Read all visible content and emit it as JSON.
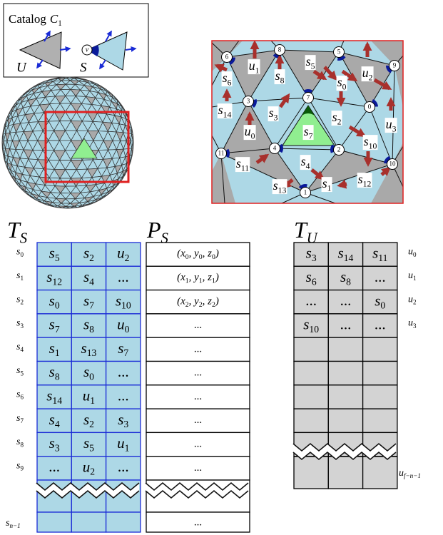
{
  "catalog": {
    "label": "Catalog",
    "symbol": [
      "C",
      [
        "1"
      ]
    ],
    "tile_u": "U",
    "tile_s": "S",
    "vertex": "v"
  },
  "mesh": {
    "nodes": [
      "0",
      "1",
      "2",
      "3",
      "4",
      "5",
      "6",
      "7",
      "8",
      "9",
      "10",
      "11"
    ],
    "labels": [
      [
        "s",
        [
          "6"
        ]
      ],
      [
        "u",
        [
          "1"
        ]
      ],
      [
        "s",
        [
          "5"
        ]
      ],
      [
        "u",
        [
          "2"
        ]
      ],
      [
        "s",
        [
          "8"
        ]
      ],
      [
        "s",
        [
          "0"
        ]
      ],
      [
        "s",
        [
          "14"
        ]
      ],
      [
        "s",
        [
          "3"
        ]
      ],
      [
        "s",
        [
          "2"
        ]
      ],
      [
        "u",
        [
          "3"
        ]
      ],
      [
        "u",
        [
          "0"
        ]
      ],
      [
        "s",
        [
          "7"
        ]
      ],
      [
        "s",
        [
          "10"
        ]
      ],
      [
        "s",
        [
          "11"
        ]
      ],
      [
        "s",
        [
          "4"
        ]
      ],
      [
        "s",
        [
          "13"
        ]
      ],
      [
        "s",
        [
          "1"
        ]
      ],
      [
        "s",
        [
          "12"
        ]
      ]
    ]
  },
  "tables": {
    "ts": {
      "title": [
        "T",
        [
          "S"
        ]
      ],
      "row_labels": [
        [
          "s",
          [
            "0"
          ]
        ],
        [
          "s",
          [
            "1"
          ]
        ],
        [
          "s",
          [
            "2"
          ]
        ],
        [
          "s",
          [
            "3"
          ]
        ],
        [
          "s",
          [
            "4"
          ]
        ],
        [
          "s",
          [
            "5"
          ]
        ],
        [
          "s",
          [
            "6"
          ]
        ],
        [
          "s",
          [
            "7"
          ]
        ],
        [
          "s",
          [
            "8"
          ]
        ],
        [
          "s",
          [
            "9"
          ]
        ]
      ],
      "rows": [
        [
          [
            "s",
            [
              "5"
            ]
          ],
          [
            "s",
            [
              "2"
            ]
          ],
          [
            "u",
            [
              "2"
            ]
          ]
        ],
        [
          [
            "s",
            [
              "12"
            ]
          ],
          [
            "s",
            [
              "4"
            ]
          ],
          "..."
        ],
        [
          [
            "s",
            [
              "0"
            ]
          ],
          [
            "s",
            [
              "7"
            ]
          ],
          [
            "s",
            [
              "10"
            ]
          ]
        ],
        [
          [
            "s",
            [
              "7"
            ]
          ],
          [
            "s",
            [
              "8"
            ]
          ],
          [
            "u",
            [
              "0"
            ]
          ]
        ],
        [
          [
            "s",
            [
              "1"
            ]
          ],
          [
            "s",
            [
              "13"
            ]
          ],
          [
            "s",
            [
              "7"
            ]
          ]
        ],
        [
          [
            "s",
            [
              "8"
            ]
          ],
          [
            "s",
            [
              "0"
            ]
          ],
          "..."
        ],
        [
          [
            "s",
            [
              "14"
            ]
          ],
          [
            "u",
            [
              "1"
            ]
          ],
          "..."
        ],
        [
          [
            "s",
            [
              "4"
            ]
          ],
          [
            "s",
            [
              "2"
            ]
          ],
          [
            "s",
            [
              "3"
            ]
          ]
        ],
        [
          [
            "s",
            [
              "3"
            ]
          ],
          [
            "s",
            [
              "5"
            ]
          ],
          [
            "u",
            [
              "1"
            ]
          ]
        ],
        [
          "...",
          [
            "u",
            [
              "2"
            ]
          ],
          "..."
        ]
      ],
      "last_label": [
        "s",
        [
          "n−1"
        ]
      ]
    },
    "ps": {
      "title": [
        "P",
        [
          "S"
        ]
      ],
      "rows": [
        [
          "(x",
          [
            "0"
          ],
          ", y",
          [
            "0"
          ],
          ", z",
          [
            "0"
          ],
          ")"
        ],
        [
          "(x",
          [
            "1"
          ],
          ", y",
          [
            "1"
          ],
          ", z",
          [
            "1"
          ],
          ")"
        ],
        [
          "(x",
          [
            "2"
          ],
          ", y",
          [
            "2"
          ],
          ", z",
          [
            "2"
          ],
          ")"
        ],
        "...",
        "...",
        "...",
        "...",
        "...",
        "...",
        "..."
      ],
      "last_row": "..."
    },
    "tu": {
      "title": [
        "T",
        [
          "U"
        ]
      ],
      "row_labels": [
        [
          "u",
          [
            "0"
          ]
        ],
        [
          "u",
          [
            "1"
          ]
        ],
        [
          "u",
          [
            "2"
          ]
        ],
        [
          "u",
          [
            "3"
          ]
        ]
      ],
      "rows": [
        [
          [
            "s",
            [
              "3"
            ]
          ],
          [
            "s",
            [
              "14"
            ]
          ],
          [
            "s",
            [
              "11"
            ]
          ]
        ],
        [
          [
            "s",
            [
              "6"
            ]
          ],
          [
            "s",
            [
              "8"
            ]
          ],
          "..."
        ],
        [
          "...",
          "...",
          [
            "s",
            [
              "0"
            ]
          ]
        ],
        [
          [
            "s",
            [
              "10"
            ]
          ],
          "...",
          "..."
        ]
      ],
      "last_label": [
        "u",
        [
          "f−n−1"
        ]
      ]
    }
  }
}
